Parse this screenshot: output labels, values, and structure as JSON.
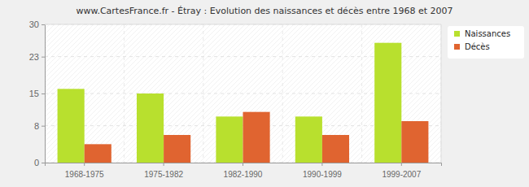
{
  "chart_data": {
    "type": "bar",
    "title": "www.CartesFrance.fr - Étray : Evolution des naissances et décès entre 1968 et 2007",
    "categories": [
      "1968-1975",
      "1975-1982",
      "1982-1990",
      "1990-1999",
      "1999-2007"
    ],
    "series": [
      {
        "name": "Naissances",
        "color": "#b8e02e",
        "values": [
          16,
          15,
          10,
          10,
          26
        ]
      },
      {
        "name": "Décès",
        "color": "#e06430",
        "values": [
          4,
          6,
          11,
          6,
          9
        ]
      }
    ],
    "ylim": [
      0,
      30
    ],
    "yticks": [
      0,
      8,
      15,
      23,
      30
    ],
    "grid": true,
    "legend": "right"
  }
}
